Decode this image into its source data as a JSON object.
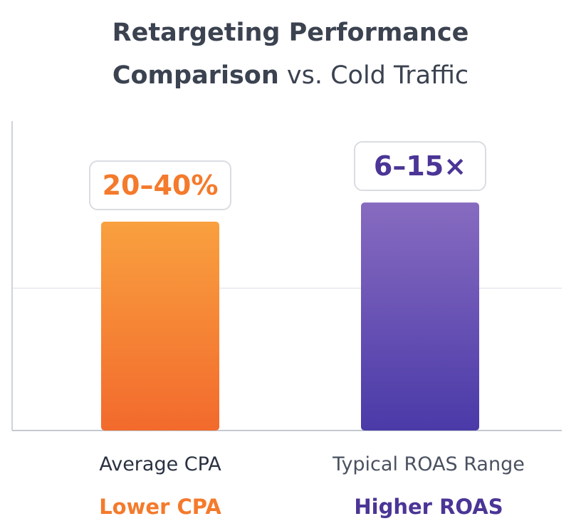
{
  "chart_data": {
    "type": "bar",
    "title_line1": "Retargeting Performance",
    "title_line2_bold": "Comparison",
    "title_line2_regular": "vs. Cold Traffic",
    "categories": [
      "Average CPA",
      "Typical ROAS Range"
    ],
    "values": [
      67.5,
      73.7
    ],
    "data_labels": [
      "20–40%",
      "6–15×"
    ],
    "subtitles": [
      "Lower CPA",
      "Higher ROAS"
    ],
    "ylim": [
      0,
      100
    ],
    "gridlines": [
      46
    ],
    "grid": true,
    "colors": {
      "orange_top": "#f9a03f",
      "orange_bottom": "#f26a2c",
      "purple_top": "#876bc0",
      "purple_bottom": "#4a3aa8",
      "orange_text": "#f47a2c",
      "purple_text": "#4b3596",
      "title": "#3b4250"
    }
  }
}
